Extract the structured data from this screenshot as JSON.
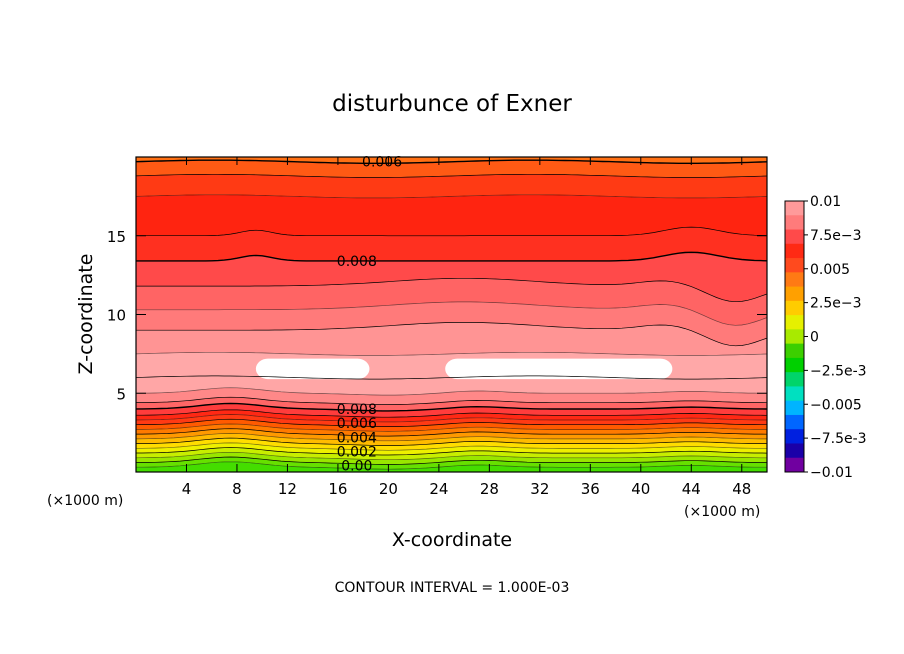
{
  "chart_data": {
    "type": "heatmap",
    "title": "disturbunce of Exner",
    "xlabel": "X-coordinate",
    "ylabel": "Z-coordinate",
    "x_unit_left": "(×1000 m)",
    "x_unit_right": "(×1000 m)",
    "footer": "CONTOUR INTERVAL = 1.000E-03",
    "xlim": [
      0,
      50
    ],
    "ylim": [
      0,
      20
    ],
    "x_ticks": [
      4,
      8,
      12,
      16,
      20,
      24,
      28,
      32,
      36,
      40,
      44,
      48
    ],
    "y_ticks": [
      5,
      10,
      15
    ],
    "contour_labels": [
      {
        "x": 19.5,
        "z": 19.7,
        "text": "0.006"
      },
      {
        "x": 17.5,
        "z": 13.4,
        "text": "0.008"
      },
      {
        "x": 17.5,
        "z": 4.0,
        "text": "0.008"
      },
      {
        "x": 17.5,
        "z": 3.1,
        "text": "0.006"
      },
      {
        "x": 17.5,
        "z": 2.2,
        "text": "0.004"
      },
      {
        "x": 17.5,
        "z": 1.3,
        "text": "0.002"
      },
      {
        "x": 17.5,
        "z": 0.4,
        "text": "0.00"
      }
    ],
    "colorbar": {
      "min": -0.01,
      "max": 0.01,
      "labels": [
        "0.01",
        "7.5e-3",
        "0.005",
        "2.5e-3",
        "0",
        "-2.5e-3",
        "-0.005",
        "-7.5e-3",
        "-0.01"
      ],
      "colors": [
        "#ff9a9a",
        "#ff7b7b",
        "#ff4a4a",
        "#ff2a14",
        "#ff4a1e",
        "#ff7a14",
        "#ffa000",
        "#ffcc00",
        "#e6f000",
        "#a8ea00",
        "#3ccf00",
        "#00d000",
        "#00d46a",
        "#00e0c0",
        "#00b4ff",
        "#0066ff",
        "#0020e0",
        "#1a00a8",
        "#7000a0"
      ]
    },
    "surface_bands_z": [
      0,
      0.3,
      0.6,
      0.9,
      1.2,
      1.5,
      1.8,
      2.1,
      2.4,
      2.7,
      3.0,
      3.3,
      3.6,
      4.0,
      4.4,
      5.0,
      6.0,
      7.5,
      9.0,
      10.3,
      11.8,
      13.4,
      15.0,
      17.5,
      18.8,
      19.7,
      20
    ],
    "surface_band_colors": [
      "#44dd00",
      "#66e000",
      "#99e600",
      "#c8ee00",
      "#eef000",
      "#ffdd00",
      "#ffbb00",
      "#ff9900",
      "#ff7a00",
      "#ff5a00",
      "#ff3a14",
      "#ff2814",
      "#ff3c3c",
      "#ff6666",
      "#ff8888",
      "#ffa6a6",
      "#ffa8a8",
      "#ff9494",
      "#ff7a7a",
      "#ff6464",
      "#ff4a4a",
      "#ff3020",
      "#ff2410",
      "#ff3a14",
      "#ff5a14",
      "#ff7014"
    ],
    "maximum_regions": [
      {
        "x_range": [
          9.5,
          18.5
        ],
        "z_range": [
          5.9,
          7.2
        ],
        "value": "> 0.01"
      },
      {
        "x_range": [
          24.5,
          42.5
        ],
        "z_range": [
          5.9,
          7.2
        ],
        "value": "> 0.01"
      }
    ]
  }
}
